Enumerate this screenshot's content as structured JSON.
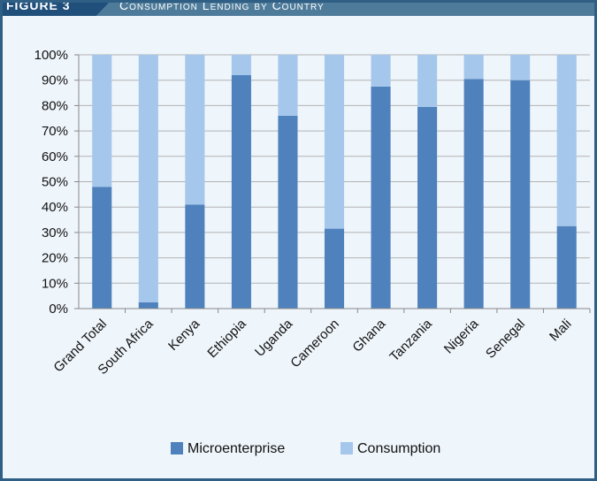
{
  "header": {
    "figure_label": "FIGURE 3",
    "title": "Consumption Lending by Country"
  },
  "colors": {
    "microenterprise": "#4f81bd",
    "consumption": "#a5c7ec",
    "frame": "#2f5f84",
    "background": "#eef5fb"
  },
  "chart_data": {
    "type": "bar",
    "stacked": true,
    "categories": [
      "Grand Total",
      "South Africa",
      "Kenya",
      "Ethiopia",
      "Uganda",
      "Cameroon",
      "Ghana",
      "Tanzania",
      "Nigeria",
      "Senegal",
      "Mali"
    ],
    "series": [
      {
        "name": "Microenterprise",
        "values": [
          48,
          2.5,
          41,
          92,
          76,
          31.5,
          87.5,
          79.5,
          90.5,
          90,
          32.5
        ]
      },
      {
        "name": "Consumption",
        "values": [
          52,
          97.5,
          59,
          8,
          24,
          68.5,
          12.5,
          20.5,
          9.5,
          10,
          67.5
        ]
      }
    ],
    "ylim": [
      0,
      100
    ],
    "yticks": [
      "0%",
      "10%",
      "20%",
      "30%",
      "40%",
      "50%",
      "60%",
      "70%",
      "80%",
      "90%",
      "100%"
    ],
    "grid": true,
    "legend": "bottom"
  }
}
